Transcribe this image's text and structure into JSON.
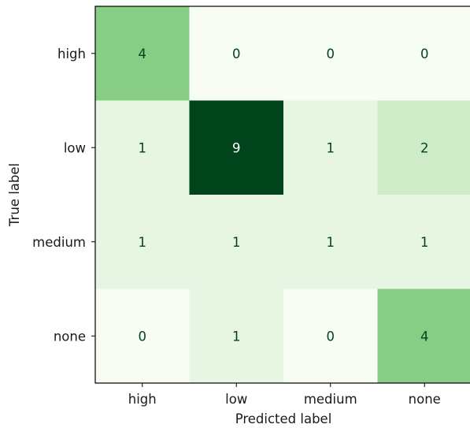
{
  "chart_data": {
    "type": "heatmap",
    "title": "",
    "xlabel": "Predicted label",
    "ylabel": "True label",
    "x_categories": [
      "high",
      "low",
      "medium",
      "none"
    ],
    "y_categories": [
      "high",
      "low",
      "medium",
      "none"
    ],
    "values": [
      [
        4,
        0,
        0,
        0
      ],
      [
        1,
        9,
        1,
        2
      ],
      [
        1,
        1,
        1,
        1
      ],
      [
        0,
        1,
        0,
        4
      ]
    ],
    "colormap": "Greens",
    "value_range": [
      0,
      9
    ],
    "grid": false,
    "colorbar": false,
    "text_color_dark": "#00441b",
    "text_color_light": "#ffffff"
  }
}
